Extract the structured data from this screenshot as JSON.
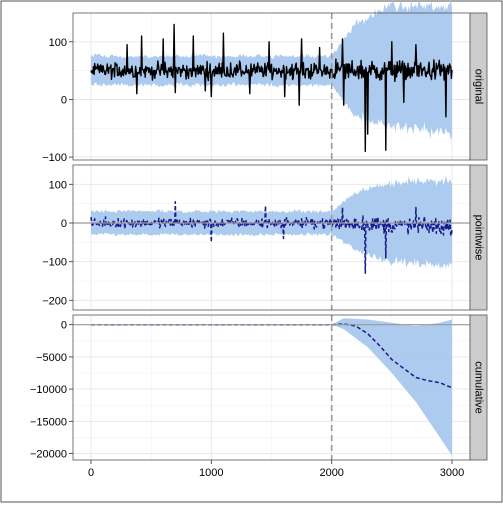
{
  "chart_data": {
    "type": "line",
    "x": {
      "ticks": [
        0,
        1000,
        2000,
        3000
      ],
      "tick_labels": [
        "0",
        "1000",
        "2000",
        "3000"
      ],
      "range": [
        -150,
        3150
      ]
    },
    "intervention_x": 2000,
    "grid": true,
    "colors": {
      "band": "#a9c8ee",
      "observed": "#000000",
      "effect": "#1a1a8c",
      "reference": "#9a9a9a",
      "strip": "#cccccc",
      "panel_border": "#555555"
    },
    "panels": [
      {
        "label": "original",
        "ylim": [
          -105,
          150
        ],
        "yticks": [
          -100,
          0,
          100
        ],
        "ytick_labels": [
          "−100",
          "0",
          "100"
        ],
        "reference_line": null,
        "series": [
          {
            "kind": "band",
            "x": [
              0,
              2000,
              2200,
              2500,
              3000
            ],
            "lower": [
              25,
              25,
              -30,
              -45,
              -60
            ],
            "upper": [
              75,
              75,
              130,
              165,
              160
            ]
          },
          {
            "kind": "line_observed",
            "x": [
              0,
              2000,
              3000
            ],
            "values": [
              50,
              50,
              50
            ],
            "noise_pre": 12,
            "noise_post": 15,
            "spikes": [
              [
                300,
                95
              ],
              [
                420,
                110
              ],
              [
                600,
                105
              ],
              [
                690,
                130
              ],
              [
                850,
                110
              ],
              [
                1100,
                115
              ],
              [
                1480,
                100
              ],
              [
                1750,
                105
              ],
              [
                1900,
                90
              ],
              [
                2090,
                105
              ],
              [
                2500,
                100
              ],
              [
                2700,
                95
              ]
            ],
            "dips": [
              [
                380,
                10
              ],
              [
                700,
                12
              ],
              [
                950,
                15
              ],
              [
                1000,
                5
              ],
              [
                1320,
                10
              ],
              [
                1610,
                5
              ],
              [
                1730,
                -10
              ],
              [
                2100,
                -10
              ],
              [
                2280,
                -90
              ],
              [
                2300,
                -60
              ],
              [
                2450,
                -88
              ],
              [
                2600,
                -5
              ],
              [
                2950,
                -30
              ]
            ]
          }
        ]
      },
      {
        "label": "pointwise",
        "ylim": [
          -225,
          150
        ],
        "yticks": [
          -200,
          -100,
          0,
          100
        ],
        "ytick_labels": [
          "−200",
          "−100",
          "0",
          "100"
        ],
        "reference_line": 0,
        "series": [
          {
            "kind": "band",
            "x": [
              0,
              2000,
              2200,
              2500,
              3000
            ],
            "lower": [
              -30,
              -30,
              -70,
              -100,
              -110
            ],
            "upper": [
              30,
              30,
              80,
              105,
              110
            ]
          },
          {
            "kind": "line_effect",
            "x": [
              0,
              2000,
              3000
            ],
            "values": [
              0,
              0,
              -10
            ],
            "noise_pre": 10,
            "noise_post": 18,
            "spikes": [
              [
                700,
                55
              ],
              [
                1450,
                45
              ],
              [
                2090,
                40
              ],
              [
                2700,
                40
              ]
            ],
            "dips": [
              [
                1000,
                -50
              ],
              [
                1600,
                -40
              ],
              [
                2280,
                -130
              ],
              [
                2450,
                -90
              ]
            ]
          }
        ]
      },
      {
        "label": "cumulative",
        "ylim": [
          -21000,
          1500
        ],
        "yticks": [
          -20000,
          -15000,
          -10000,
          -5000,
          0
        ],
        "ytick_labels": [
          "−20000",
          "−15000",
          "−10000",
          "−5000",
          "0"
        ],
        "reference_line": 0,
        "series": [
          {
            "kind": "band",
            "x": [
              0,
              2000,
              2100,
              2300,
              2500,
              2700,
              2900,
              3000
            ],
            "lower": [
              0,
              0,
              -700,
              -3500,
              -7500,
              -12000,
              -17500,
              -20300
            ],
            "upper": [
              0,
              0,
              1000,
              800,
              300,
              -200,
              300,
              800
            ]
          },
          {
            "kind": "line_effect",
            "x": [
              0,
              2000,
              2100,
              2200,
              2300,
              2400,
              2500,
              2600,
              2700,
              2800,
              2900,
              3000
            ],
            "values": [
              0,
              0,
              100,
              -200,
              -1400,
              -3300,
              -5400,
              -6800,
              -8200,
              -8700,
              -9000,
              -9800
            ]
          }
        ]
      }
    ]
  }
}
